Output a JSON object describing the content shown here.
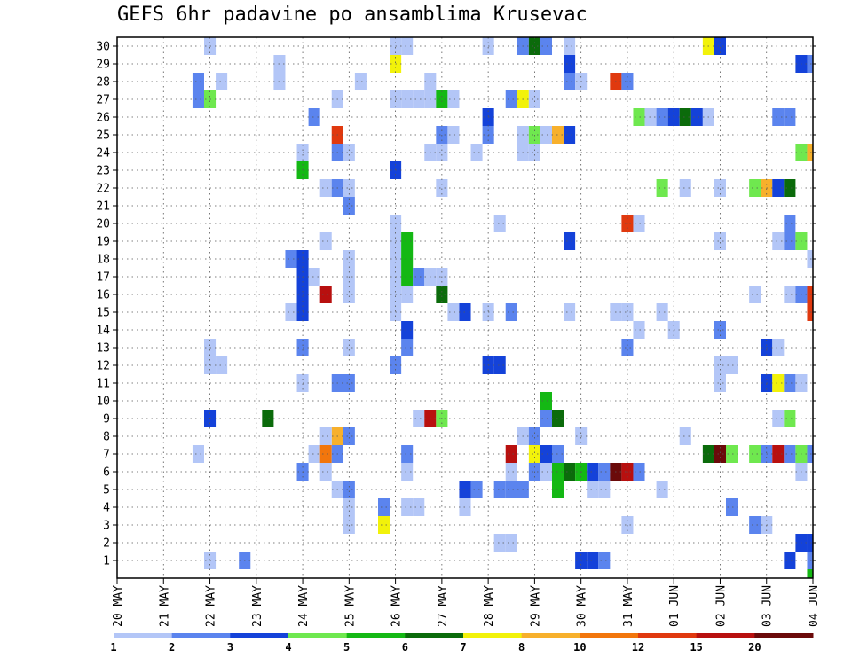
{
  "chart_data": {
    "type": "heatmap",
    "title": "GEFS 6hr padavine po ansamblima Krusevac",
    "x_tick_labels": [
      "20 MAY",
      "21 MAY",
      "22 MAY",
      "23 MAY",
      "24 MAY",
      "25 MAY",
      "26 MAY",
      "27 MAY",
      "28 MAY",
      "29 MAY",
      "30 MAY",
      "31 MAY",
      "01 JUN",
      "02 JUN",
      "03 JUN",
      "04 JUN"
    ],
    "y_tick_labels": [
      "1",
      "2",
      "3",
      "4",
      "5",
      "6",
      "7",
      "8",
      "9",
      "10",
      "11",
      "12",
      "13",
      "14",
      "15",
      "16",
      "17",
      "18",
      "19",
      "20",
      "21",
      "22",
      "23",
      "24",
      "25",
      "26",
      "27",
      "28",
      "29",
      "30"
    ],
    "x_steps_per_day": 4,
    "x_range": [
      0,
      60
    ],
    "y_range": [
      0,
      30
    ],
    "grid": true,
    "colorbar": {
      "ticks": [
        "1",
        "2",
        "3",
        "4",
        "5",
        "6",
        "7",
        "8",
        "10",
        "12",
        "15",
        "20"
      ],
      "colors": [
        "#b3c6f7",
        "#5b84ee",
        "#1442d9",
        "#6fe84f",
        "#14b814",
        "#0b6b0b",
        "#f2f20a",
        "#f7b02c",
        "#f2760c",
        "#e0390f",
        "#b8100f",
        "#6b0a0a"
      ]
    },
    "cells": [
      [
        8,
        1,
        0
      ],
      [
        11,
        1,
        1
      ],
      [
        40,
        1,
        2
      ],
      [
        41,
        1,
        2
      ],
      [
        42,
        1,
        1
      ],
      [
        60,
        0,
        4
      ],
      [
        60,
        1,
        1
      ],
      [
        59,
        2,
        2
      ],
      [
        58,
        1,
        2
      ],
      [
        33,
        2,
        0
      ],
      [
        34,
        2,
        0
      ],
      [
        60,
        2,
        2
      ],
      [
        20,
        3,
        0
      ],
      [
        23,
        3,
        6
      ],
      [
        44,
        3,
        0
      ],
      [
        55,
        3,
        1
      ],
      [
        56,
        3,
        0
      ],
      [
        23,
        4,
        1
      ],
      [
        25,
        4,
        0
      ],
      [
        26,
        4,
        0
      ],
      [
        20,
        4,
        0
      ],
      [
        30,
        4,
        0
      ],
      [
        53,
        4,
        1
      ],
      [
        19,
        5,
        0
      ],
      [
        20,
        5,
        1
      ],
      [
        30,
        5,
        2
      ],
      [
        31,
        5,
        1
      ],
      [
        33,
        5,
        1
      ],
      [
        34,
        5,
        1
      ],
      [
        35,
        5,
        1
      ],
      [
        38,
        5,
        4
      ],
      [
        41,
        5,
        0
      ],
      [
        42,
        5,
        0
      ],
      [
        47,
        5,
        0
      ],
      [
        16,
        6,
        1
      ],
      [
        18,
        6,
        0
      ],
      [
        25,
        6,
        0
      ],
      [
        34,
        6,
        0
      ],
      [
        36,
        6,
        1
      ],
      [
        37,
        6,
        0
      ],
      [
        38,
        6,
        4
      ],
      [
        39,
        6,
        5
      ],
      [
        40,
        6,
        4
      ],
      [
        41,
        6,
        2
      ],
      [
        42,
        6,
        1
      ],
      [
        43,
        6,
        11
      ],
      [
        44,
        6,
        10
      ],
      [
        45,
        6,
        1
      ],
      [
        59,
        6,
        0
      ],
      [
        7,
        7,
        0
      ],
      [
        17,
        7,
        0
      ],
      [
        18,
        7,
        8
      ],
      [
        19,
        7,
        1
      ],
      [
        25,
        7,
        1
      ],
      [
        34,
        7,
        10
      ],
      [
        36,
        7,
        6
      ],
      [
        37,
        7,
        2
      ],
      [
        38,
        7,
        1
      ],
      [
        51,
        7,
        5
      ],
      [
        52,
        7,
        11
      ],
      [
        53,
        7,
        3
      ],
      [
        55,
        7,
        3
      ],
      [
        56,
        7,
        1
      ],
      [
        57,
        7,
        10
      ],
      [
        58,
        7,
        1
      ],
      [
        59,
        7,
        3
      ],
      [
        60,
        7,
        1
      ],
      [
        19,
        8,
        7
      ],
      [
        20,
        8,
        1
      ],
      [
        35,
        8,
        0
      ],
      [
        36,
        8,
        1
      ],
      [
        40,
        8,
        0
      ],
      [
        49,
        8,
        0
      ],
      [
        18,
        8,
        0
      ],
      [
        8,
        9,
        2
      ],
      [
        13,
        9,
        5
      ],
      [
        26,
        9,
        0
      ],
      [
        27,
        9,
        10
      ],
      [
        28,
        9,
        3
      ],
      [
        37,
        9,
        1
      ],
      [
        38,
        9,
        5
      ],
      [
        57,
        9,
        0
      ],
      [
        58,
        9,
        3
      ],
      [
        37,
        10,
        4
      ],
      [
        16,
        11,
        0
      ],
      [
        19,
        11,
        1
      ],
      [
        20,
        11,
        1
      ],
      [
        52,
        11,
        0
      ],
      [
        56,
        11,
        2
      ],
      [
        57,
        11,
        6
      ],
      [
        58,
        11,
        1
      ],
      [
        59,
        11,
        0
      ],
      [
        8,
        12,
        0
      ],
      [
        9,
        12,
        0
      ],
      [
        24,
        12,
        1
      ],
      [
        32,
        12,
        2
      ],
      [
        33,
        12,
        2
      ],
      [
        52,
        12,
        0
      ],
      [
        53,
        12,
        0
      ],
      [
        8,
        13,
        0
      ],
      [
        16,
        13,
        1
      ],
      [
        20,
        13,
        0
      ],
      [
        25,
        13,
        1
      ],
      [
        44,
        13,
        1
      ],
      [
        56,
        13,
        2
      ],
      [
        57,
        13,
        0
      ],
      [
        25,
        14,
        2
      ],
      [
        45,
        14,
        0
      ],
      [
        48,
        14,
        0
      ],
      [
        52,
        14,
        1
      ],
      [
        15,
        15,
        0
      ],
      [
        16,
        15,
        2
      ],
      [
        24,
        15,
        0
      ],
      [
        29,
        15,
        0
      ],
      [
        30,
        15,
        2
      ],
      [
        32,
        15,
        0
      ],
      [
        34,
        15,
        1
      ],
      [
        39,
        15,
        0
      ],
      [
        43,
        15,
        0
      ],
      [
        44,
        15,
        0
      ],
      [
        47,
        15,
        0
      ],
      [
        60,
        15,
        9
      ],
      [
        16,
        16,
        2
      ],
      [
        18,
        16,
        10
      ],
      [
        20,
        16,
        0
      ],
      [
        24,
        16,
        0
      ],
      [
        25,
        16,
        0
      ],
      [
        28,
        16,
        5
      ],
      [
        55,
        16,
        0
      ],
      [
        58,
        16,
        0
      ],
      [
        59,
        16,
        1
      ],
      [
        60,
        16,
        9
      ],
      [
        16,
        17,
        2
      ],
      [
        17,
        17,
        0
      ],
      [
        20,
        17,
        0
      ],
      [
        24,
        17,
        0
      ],
      [
        25,
        17,
        4
      ],
      [
        26,
        17,
        1
      ],
      [
        27,
        17,
        0
      ],
      [
        28,
        17,
        0
      ],
      [
        15,
        18,
        1
      ],
      [
        16,
        18,
        2
      ],
      [
        20,
        18,
        0
      ],
      [
        24,
        18,
        0
      ],
      [
        25,
        18,
        4
      ],
      [
        60,
        18,
        0
      ],
      [
        18,
        19,
        0
      ],
      [
        24,
        19,
        0
      ],
      [
        25,
        19,
        4
      ],
      [
        39,
        19,
        2
      ],
      [
        52,
        19,
        0
      ],
      [
        57,
        19,
        0
      ],
      [
        58,
        19,
        1
      ],
      [
        59,
        19,
        3
      ],
      [
        24,
        20,
        0
      ],
      [
        33,
        20,
        0
      ],
      [
        44,
        20,
        9
      ],
      [
        45,
        20,
        0
      ],
      [
        58,
        20,
        1
      ],
      [
        20,
        21,
        1
      ],
      [
        18,
        22,
        0
      ],
      [
        19,
        22,
        1
      ],
      [
        20,
        22,
        0
      ],
      [
        28,
        22,
        0
      ],
      [
        47,
        22,
        3
      ],
      [
        49,
        22,
        0
      ],
      [
        52,
        22,
        0
      ],
      [
        55,
        22,
        3
      ],
      [
        56,
        22,
        7
      ],
      [
        57,
        22,
        2
      ],
      [
        58,
        22,
        5
      ],
      [
        16,
        23,
        4
      ],
      [
        24,
        23,
        2
      ],
      [
        16,
        24,
        0
      ],
      [
        19,
        24,
        1
      ],
      [
        20,
        24,
        0
      ],
      [
        27,
        24,
        0
      ],
      [
        28,
        24,
        0
      ],
      [
        31,
        24,
        0
      ],
      [
        35,
        24,
        0
      ],
      [
        36,
        24,
        0
      ],
      [
        59,
        24,
        3
      ],
      [
        60,
        24,
        7
      ],
      [
        19,
        25,
        9
      ],
      [
        28,
        25,
        1
      ],
      [
        29,
        25,
        0
      ],
      [
        32,
        25,
        1
      ],
      [
        35,
        25,
        0
      ],
      [
        36,
        25,
        3
      ],
      [
        37,
        25,
        0
      ],
      [
        38,
        25,
        7
      ],
      [
        39,
        25,
        2
      ],
      [
        17,
        26,
        1
      ],
      [
        32,
        26,
        2
      ],
      [
        45,
        26,
        3
      ],
      [
        46,
        26,
        0
      ],
      [
        47,
        26,
        1
      ],
      [
        48,
        26,
        2
      ],
      [
        49,
        26,
        5
      ],
      [
        50,
        26,
        2
      ],
      [
        51,
        26,
        0
      ],
      [
        57,
        26,
        1
      ],
      [
        58,
        26,
        1
      ],
      [
        7,
        27,
        1
      ],
      [
        8,
        27,
        3
      ],
      [
        19,
        27,
        0
      ],
      [
        24,
        27,
        0
      ],
      [
        25,
        27,
        0
      ],
      [
        26,
        27,
        0
      ],
      [
        27,
        27,
        0
      ],
      [
        28,
        27,
        4
      ],
      [
        29,
        27,
        0
      ],
      [
        34,
        27,
        1
      ],
      [
        35,
        27,
        6
      ],
      [
        36,
        27,
        0
      ],
      [
        7,
        28,
        1
      ],
      [
        9,
        28,
        0
      ],
      [
        14,
        28,
        0
      ],
      [
        21,
        28,
        0
      ],
      [
        27,
        28,
        0
      ],
      [
        39,
        28,
        1
      ],
      [
        40,
        28,
        0
      ],
      [
        43,
        28,
        9
      ],
      [
        44,
        28,
        1
      ],
      [
        14,
        29,
        0
      ],
      [
        24,
        29,
        6
      ],
      [
        39,
        29,
        2
      ],
      [
        59,
        29,
        2
      ],
      [
        60,
        29,
        1
      ],
      [
        8,
        30,
        0
      ],
      [
        24,
        30,
        0
      ],
      [
        25,
        30,
        0
      ],
      [
        32,
        30,
        0
      ],
      [
        35,
        30,
        1
      ],
      [
        36,
        30,
        5
      ],
      [
        37,
        30,
        1
      ],
      [
        39,
        30,
        0
      ],
      [
        51,
        30,
        6
      ],
      [
        52,
        30,
        2
      ]
    ]
  }
}
